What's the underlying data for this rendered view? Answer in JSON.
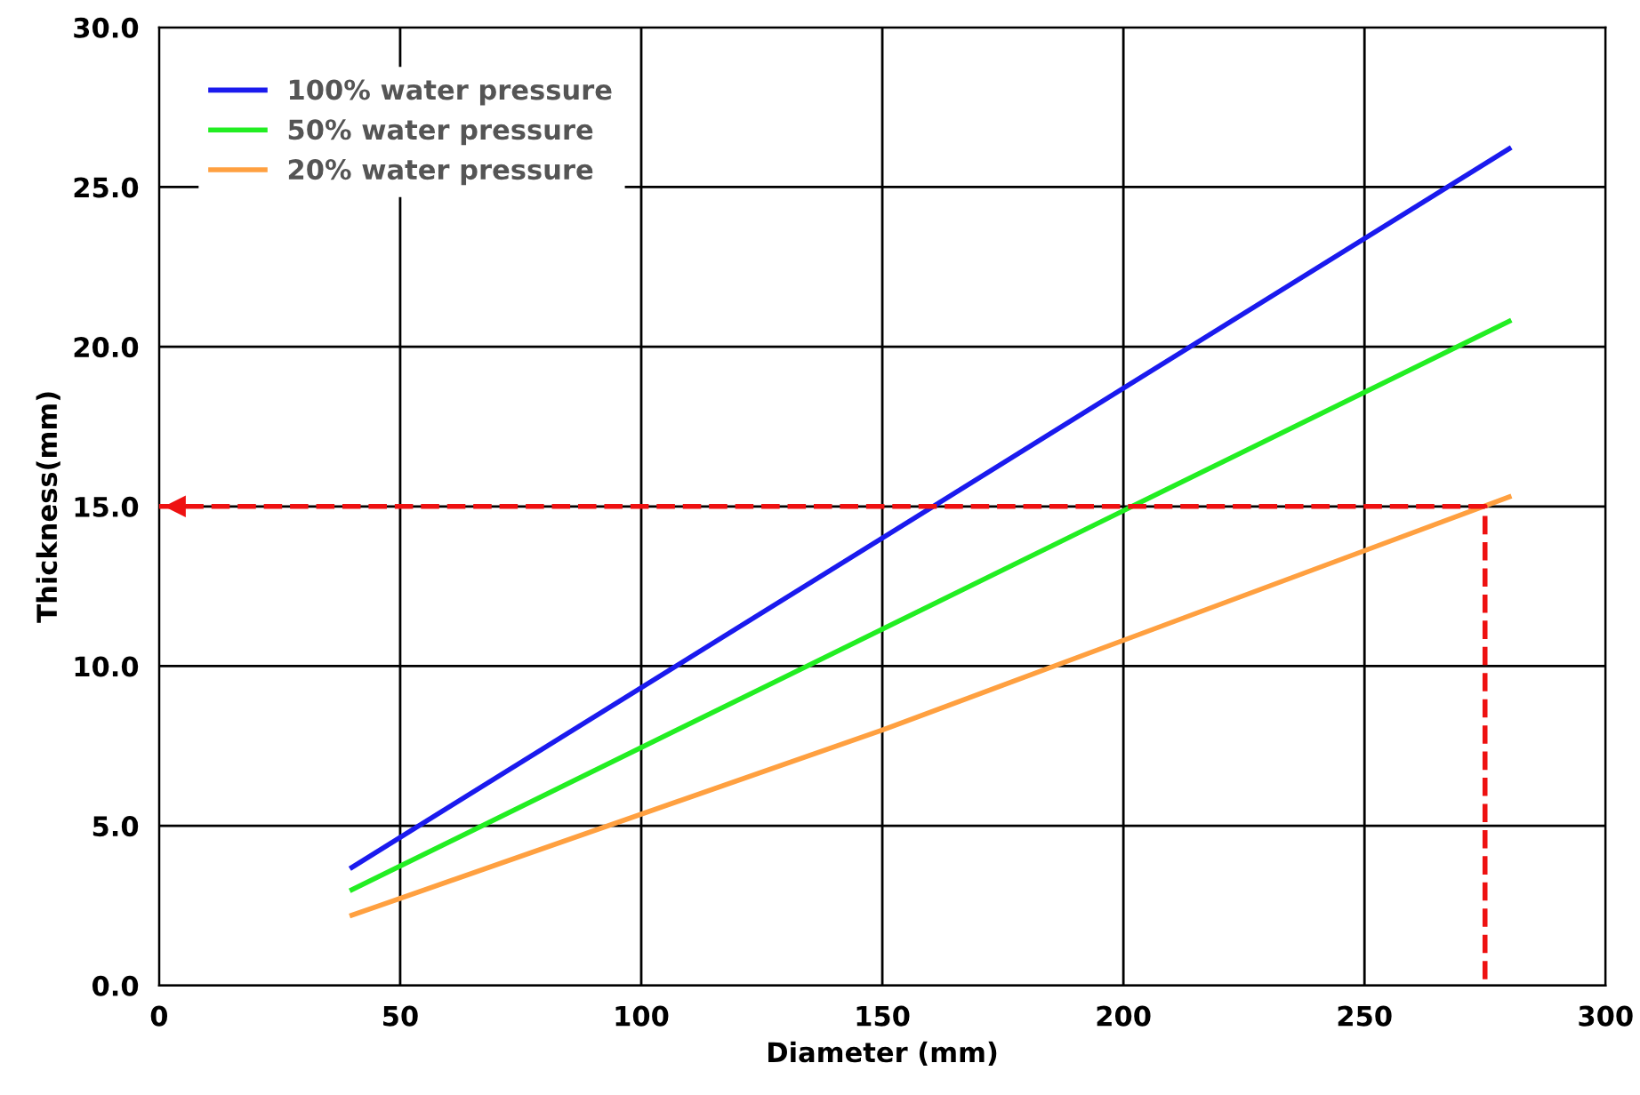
{
  "chart_data": {
    "type": "line",
    "xlabel": "Diameter (mm)",
    "ylabel": "Thickness(mm)",
    "xlim": [
      0,
      300
    ],
    "xticks": [
      0,
      50,
      100,
      150,
      200,
      250,
      300
    ],
    "ylim": [
      0,
      30
    ],
    "yticks": [
      {
        "value": 0,
        "label": "0.0"
      },
      {
        "value": 5,
        "label": "5.0"
      },
      {
        "value": 10,
        "label": "10.0"
      },
      {
        "value": 15,
        "label": "15.0"
      },
      {
        "value": 20,
        "label": "20.0"
      },
      {
        "value": 25,
        "label": "25.0"
      },
      {
        "value": 30,
        "label": "30.0"
      }
    ],
    "grid": true,
    "legend": "top left",
    "marker": "none",
    "series": [
      {
        "name": "100% water pressure",
        "color": "#1a1aee",
        "x": [
          40,
          280
        ],
        "values": [
          3.7,
          26.2
        ]
      },
      {
        "name": "50% water pressure",
        "color": "#22ee22",
        "x": [
          40,
          280
        ],
        "values": [
          3.0,
          20.8
        ]
      },
      {
        "name": "20% water pressure",
        "color": "#ffa040",
        "x": [
          40,
          150,
          280
        ],
        "values": [
          2.2,
          8.0,
          15.3
        ]
      },
      {
        "color": "#ee1111",
        "line_style": "dashed",
        "x": [
          0,
          275,
          275
        ],
        "values": [
          15,
          15,
          0
        ]
      }
    ]
  }
}
